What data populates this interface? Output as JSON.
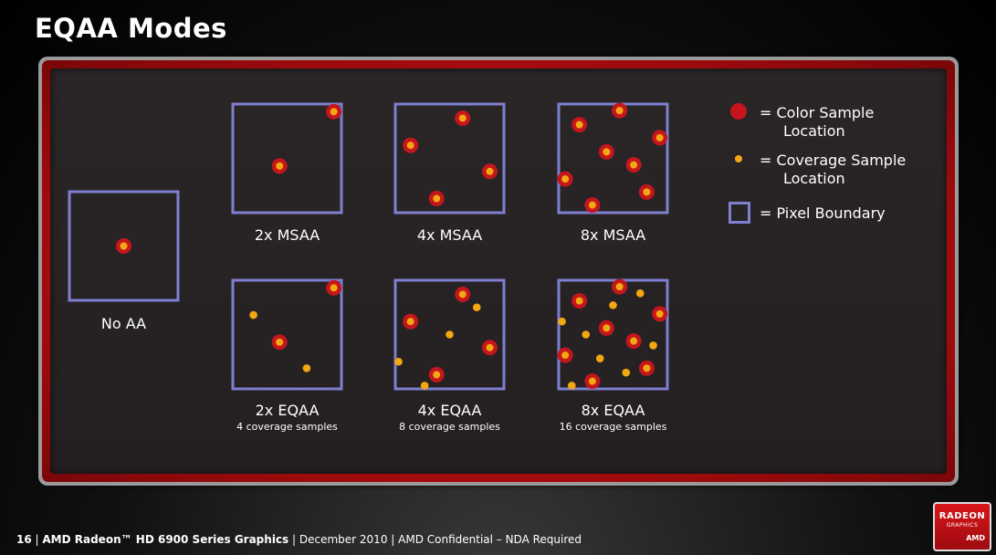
{
  "title": "EQAA Modes",
  "legend": {
    "color": {
      "line1": "= Color Sample",
      "line2": "Location"
    },
    "coverage": {
      "line1": "= Coverage Sample",
      "line2": "Location"
    },
    "pixel": {
      "line1": "= Pixel Boundary"
    }
  },
  "footer": {
    "page": "16",
    "product": "AMD Radeon™ HD 6900 Series Graphics",
    "rest": "December 2010 | AMD Confidential – NDA Required"
  },
  "logo": {
    "line1": "RADEON",
    "line2": "GRAPHICS",
    "line3": "AMD"
  },
  "colors": {
    "pixel_border": "#7f7fd0",
    "color_sample": "#c4161c",
    "coverage_sample": "#f3a712",
    "panel_red": "#b80d10"
  },
  "modes": [
    {
      "id": "no-aa",
      "label": "No AA",
      "sublabel": "",
      "color_samples": [
        [
          0.5,
          0.5
        ]
      ],
      "coverage_samples": []
    },
    {
      "id": "2x-msaa",
      "label": "2x MSAA",
      "sublabel": "",
      "color_samples": [
        [
          0.93,
          0.07
        ],
        [
          0.43,
          0.57
        ]
      ],
      "coverage_samples": []
    },
    {
      "id": "4x-msaa",
      "label": "4x MSAA",
      "sublabel": "",
      "color_samples": [
        [
          0.62,
          0.13
        ],
        [
          0.14,
          0.38
        ],
        [
          0.87,
          0.62
        ],
        [
          0.38,
          0.87
        ]
      ],
      "coverage_samples": []
    },
    {
      "id": "8x-msaa",
      "label": "8x MSAA",
      "sublabel": "",
      "color_samples": [
        [
          0.19,
          0.19
        ],
        [
          0.56,
          0.06
        ],
        [
          0.93,
          0.31
        ],
        [
          0.44,
          0.44
        ],
        [
          0.69,
          0.56
        ],
        [
          0.06,
          0.69
        ],
        [
          0.81,
          0.81
        ],
        [
          0.31,
          0.93
        ]
      ],
      "coverage_samples": []
    },
    {
      "id": "2x-eqaa",
      "label": "2x EQAA",
      "sublabel": "4 coverage samples",
      "color_samples": [
        [
          0.93,
          0.07
        ],
        [
          0.43,
          0.57
        ]
      ],
      "coverage_samples": [
        [
          0.19,
          0.32
        ],
        [
          0.68,
          0.81
        ]
      ]
    },
    {
      "id": "4x-eqaa",
      "label": "4x EQAA",
      "sublabel": "8 coverage samples",
      "color_samples": [
        [
          0.62,
          0.13
        ],
        [
          0.14,
          0.38
        ],
        [
          0.87,
          0.62
        ],
        [
          0.38,
          0.87
        ]
      ],
      "coverage_samples": [
        [
          0.75,
          0.25
        ],
        [
          0.5,
          0.5
        ],
        [
          0.03,
          0.75
        ],
        [
          0.27,
          0.97
        ]
      ]
    },
    {
      "id": "8x-eqaa",
      "label": "8x EQAA",
      "sublabel": "16 coverage samples",
      "color_samples": [
        [
          0.19,
          0.19
        ],
        [
          0.56,
          0.06
        ],
        [
          0.93,
          0.31
        ],
        [
          0.44,
          0.44
        ],
        [
          0.69,
          0.56
        ],
        [
          0.06,
          0.69
        ],
        [
          0.81,
          0.81
        ],
        [
          0.31,
          0.93
        ]
      ],
      "coverage_samples": [
        [
          0.75,
          0.12
        ],
        [
          0.5,
          0.23
        ],
        [
          0.03,
          0.38
        ],
        [
          0.25,
          0.5
        ],
        [
          0.87,
          0.6
        ],
        [
          0.38,
          0.72
        ],
        [
          0.62,
          0.85
        ],
        [
          0.12,
          0.97
        ]
      ]
    }
  ]
}
